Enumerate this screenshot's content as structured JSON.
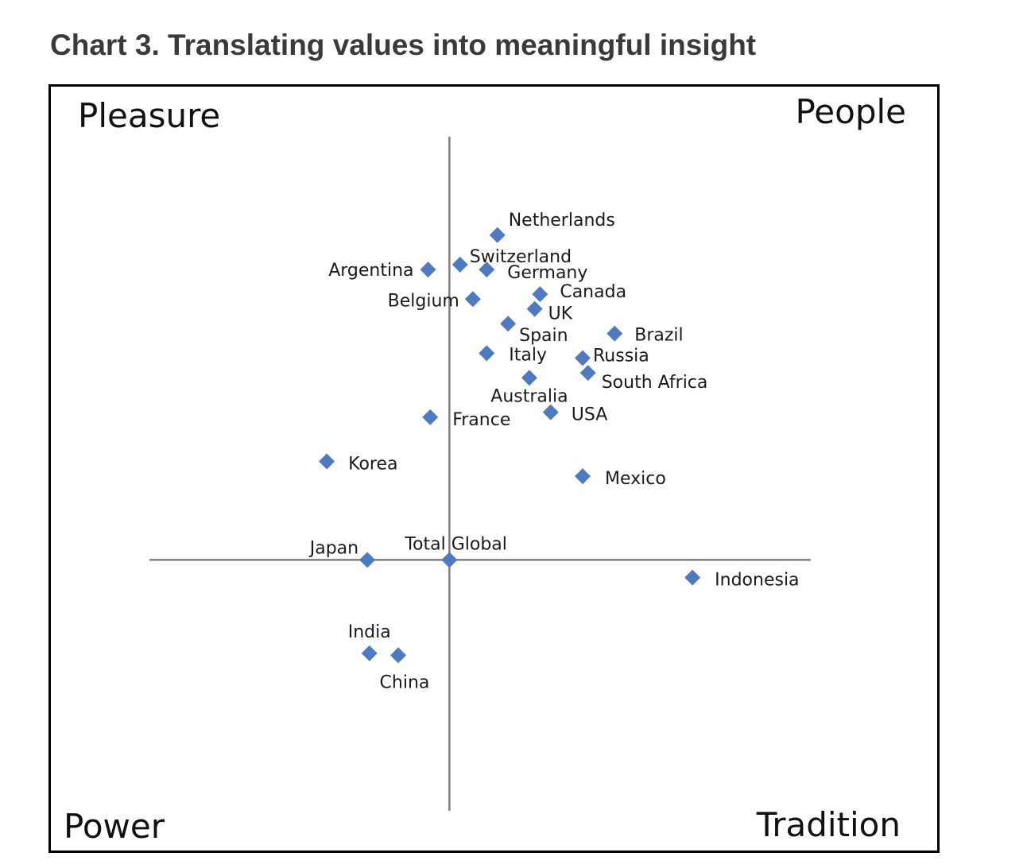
{
  "title": "Chart 3. Translating values into meaningful insight",
  "quadrants": {
    "top_left": "Pleasure",
    "top_right": "People",
    "bottom_left": "Power",
    "bottom_right": "Tradition"
  },
  "colors": {
    "marker": "#4f7ac0",
    "axis": "#808080",
    "frame": "#000000"
  },
  "chart_data": {
    "type": "scatter",
    "title": "Chart 3. Translating values into meaningful insight",
    "xlabel": "",
    "ylabel": "",
    "xlim": [
      -3.0,
      3.8
    ],
    "ylim": [
      -2.55,
      4.3
    ],
    "grid": false,
    "legend": "none",
    "points": [
      {
        "label": "Netherlands",
        "x": 0.45,
        "y": 3.3
      },
      {
        "label": "Switzerland",
        "x": 0.1,
        "y": 3.0
      },
      {
        "label": "Argentina",
        "x": -0.2,
        "y": 2.95
      },
      {
        "label": "Germany",
        "x": 0.35,
        "y": 2.95
      },
      {
        "label": "Canada",
        "x": 0.85,
        "y": 2.7
      },
      {
        "label": "Belgium",
        "x": 0.22,
        "y": 2.65
      },
      {
        "label": "UK",
        "x": 0.8,
        "y": 2.55
      },
      {
        "label": "Spain",
        "x": 0.55,
        "y": 2.4
      },
      {
        "label": "Brazil",
        "x": 1.55,
        "y": 2.3
      },
      {
        "label": "Italy",
        "x": 0.35,
        "y": 2.1
      },
      {
        "label": "Russia",
        "x": 1.25,
        "y": 2.05
      },
      {
        "label": "South Africa",
        "x": 1.3,
        "y": 1.9
      },
      {
        "label": "Australia",
        "x": 0.75,
        "y": 1.85
      },
      {
        "label": "USA",
        "x": 0.95,
        "y": 1.5
      },
      {
        "label": "France",
        "x": -0.18,
        "y": 1.45
      },
      {
        "label": "Korea",
        "x": -1.15,
        "y": 1.0
      },
      {
        "label": "Mexico",
        "x": 1.25,
        "y": 0.85
      },
      {
        "label": "Japan",
        "x": -0.77,
        "y": 0.0
      },
      {
        "label": "Total Global",
        "x": 0.0,
        "y": 0.0
      },
      {
        "label": "Indonesia",
        "x": 2.28,
        "y": -0.18
      },
      {
        "label": "India",
        "x": -0.75,
        "y": -0.95
      },
      {
        "label": "China",
        "x": -0.48,
        "y": -0.97
      }
    ]
  }
}
